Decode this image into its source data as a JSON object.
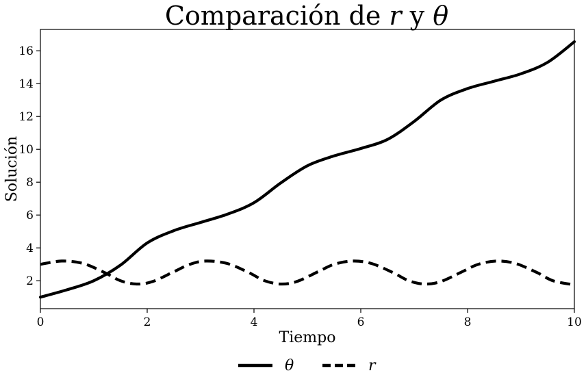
{
  "chart_data": {
    "type": "line",
    "title": {
      "text_before": "Comparación de ",
      "var1": "r",
      "text_middle": " y ",
      "var2": "θ"
    },
    "xlabel": "Tiempo",
    "ylabel": "Solución",
    "xlim": [
      0,
      10
    ],
    "ylim": [
      0.3,
      17.3
    ],
    "xticks": [
      0,
      2,
      4,
      6,
      8,
      10
    ],
    "yticks": [
      2,
      4,
      6,
      8,
      10,
      12,
      14,
      16
    ],
    "grid": false,
    "legend_position": "bottom-center",
    "series": [
      {
        "name": "θ",
        "style": "solid",
        "color": "#000000",
        "points": [
          [
            0,
            1.0
          ],
          [
            0.5,
            1.45
          ],
          [
            1.0,
            2.0
          ],
          [
            1.5,
            2.95
          ],
          [
            2.0,
            4.3
          ],
          [
            2.5,
            5.05
          ],
          [
            3.0,
            5.55
          ],
          [
            3.5,
            6.05
          ],
          [
            4.0,
            6.75
          ],
          [
            4.5,
            7.95
          ],
          [
            5.0,
            9.0
          ],
          [
            5.5,
            9.6
          ],
          [
            6.0,
            10.05
          ],
          [
            6.5,
            10.6
          ],
          [
            7.0,
            11.7
          ],
          [
            7.5,
            13.0
          ],
          [
            8.0,
            13.7
          ],
          [
            8.5,
            14.15
          ],
          [
            9.0,
            14.6
          ],
          [
            9.5,
            15.3
          ],
          [
            10.0,
            16.55
          ]
        ]
      },
      {
        "name": "r",
        "style": "dashed",
        "color": "#000000",
        "points": [
          [
            0,
            3.0
          ],
          [
            0.4,
            3.2
          ],
          [
            0.8,
            3.05
          ],
          [
            1.2,
            2.5
          ],
          [
            1.5,
            2.0
          ],
          [
            1.8,
            1.8
          ],
          [
            2.1,
            1.95
          ],
          [
            2.5,
            2.55
          ],
          [
            2.8,
            3.0
          ],
          [
            3.1,
            3.2
          ],
          [
            3.5,
            3.05
          ],
          [
            3.9,
            2.5
          ],
          [
            4.2,
            2.0
          ],
          [
            4.5,
            1.8
          ],
          [
            4.8,
            1.95
          ],
          [
            5.2,
            2.55
          ],
          [
            5.5,
            3.0
          ],
          [
            5.85,
            3.2
          ],
          [
            6.2,
            3.05
          ],
          [
            6.6,
            2.5
          ],
          [
            6.9,
            2.0
          ],
          [
            7.2,
            1.8
          ],
          [
            7.5,
            1.95
          ],
          [
            7.9,
            2.55
          ],
          [
            8.2,
            3.0
          ],
          [
            8.55,
            3.2
          ],
          [
            8.9,
            3.05
          ],
          [
            9.3,
            2.5
          ],
          [
            9.6,
            2.0
          ],
          [
            10.0,
            1.75
          ]
        ]
      }
    ]
  }
}
